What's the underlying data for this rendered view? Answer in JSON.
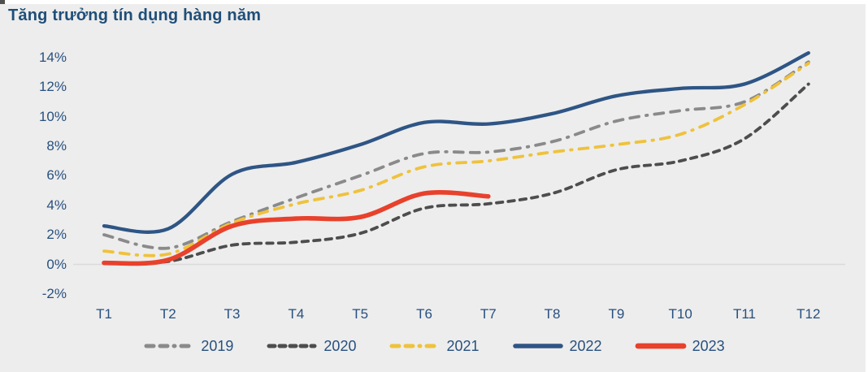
{
  "title": "Tăng trưởng tín dụng hàng năm",
  "colors": {
    "background": "#EDEDED",
    "title_text": "#1F4E79",
    "axis_text": "#27507E",
    "zero_line": "#DBDBDB"
  },
  "chart_data": {
    "type": "line",
    "title": "Tăng trưởng tín dụng hàng năm",
    "xlabel": "",
    "ylabel": "",
    "value_unit": "%",
    "x_categories": [
      "T1",
      "T2",
      "T3",
      "T4",
      "T5",
      "T6",
      "T7",
      "T8",
      "T9",
      "T10",
      "T11",
      "T12"
    ],
    "y_ticks": [
      "14%",
      "12%",
      "10%",
      "8%",
      "6%",
      "4%",
      "2%",
      "0%",
      "-2%"
    ],
    "ylim": [
      -2,
      15
    ],
    "gridlines": "single horizontal line at 0% only",
    "legend_position": "bottom-center",
    "series": [
      {
        "name": "2019",
        "color": "#8A8A8A",
        "style": "dashdot",
        "width": 3.8,
        "values": [
          2.0,
          1.1,
          2.9,
          4.5,
          6.0,
          7.5,
          7.6,
          8.3,
          9.7,
          10.4,
          11.0,
          13.7
        ]
      },
      {
        "name": "2020",
        "color": "#4D4D4D",
        "style": "dash",
        "width": 3.8,
        "values": [
          0.1,
          0.2,
          1.3,
          1.5,
          2.1,
          3.8,
          4.1,
          4.8,
          6.4,
          7.0,
          8.5,
          12.2
        ]
      },
      {
        "name": "2021",
        "color": "#EFC23C",
        "style": "dashdot",
        "width": 3.8,
        "values": [
          0.9,
          0.7,
          2.8,
          4.1,
          5.0,
          6.6,
          7.0,
          7.6,
          8.1,
          8.8,
          10.8,
          13.6
        ]
      },
      {
        "name": "2022",
        "color": "#2E5585",
        "style": "solid",
        "width": 4.3,
        "values": [
          2.6,
          2.4,
          6.1,
          6.9,
          8.1,
          9.6,
          9.5,
          10.2,
          11.4,
          11.9,
          12.2,
          14.3
        ]
      },
      {
        "name": "2023",
        "color": "#E8412C",
        "style": "solid",
        "width": 5.6,
        "values": [
          0.1,
          0.3,
          2.6,
          3.1,
          3.2,
          4.8,
          4.6
        ]
      }
    ]
  }
}
